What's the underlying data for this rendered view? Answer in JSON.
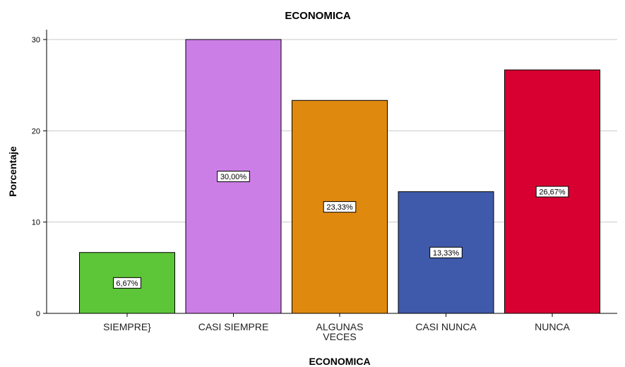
{
  "chart_data": {
    "type": "bar",
    "title": "ECONOMICA",
    "xlabel": "ECONOMICA",
    "ylabel": "Porcentaje",
    "categories": [
      "SIEMPRE}",
      "CASI SIEMPRE",
      "ALGUNAS VECES",
      "CASI NUNCA",
      "NUNCA"
    ],
    "category_labels": [
      [
        "SIEMPRE}"
      ],
      [
        "CASI SIEMPRE"
      ],
      [
        "ALGUNAS",
        "VECES"
      ],
      [
        "CASI NUNCA"
      ],
      [
        "NUNCA"
      ]
    ],
    "values": [
      6.67,
      30.0,
      23.33,
      13.33,
      26.67
    ],
    "data_labels": [
      "6,67%",
      "30,00%",
      "23,33%",
      "13,33%",
      "26,67%"
    ],
    "colors": [
      "#5DC538",
      "#CB7EE6",
      "#E0890F",
      "#3F5AAA",
      "#D80031"
    ],
    "ylim": [
      0,
      30
    ],
    "yticks": [
      0,
      10,
      20,
      30
    ],
    "grid": true,
    "legend": "none"
  }
}
